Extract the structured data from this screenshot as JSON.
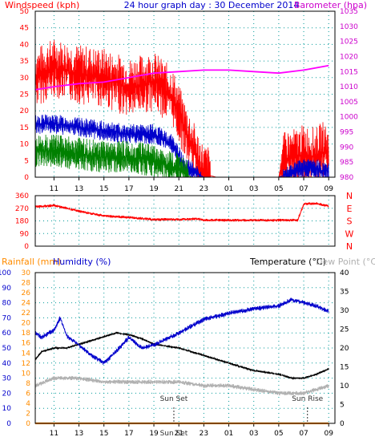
{
  "chart_data": [
    {
      "type": "line",
      "labels": {
        "left": "Windspeed (kph)",
        "center": "24 hour graph day : 30 December 2014",
        "right": "Barometer (hpa)"
      },
      "x_ticks": [
        "11",
        "13",
        "15",
        "17",
        "19",
        "21",
        "23",
        "01",
        "03",
        "05",
        "07",
        "09"
      ],
      "left_axis": {
        "ticks": [
          "0",
          "5",
          "10",
          "15",
          "20",
          "25",
          "30",
          "35",
          "40",
          "45",
          "50"
        ],
        "ylim": [
          0,
          50
        ]
      },
      "right_axis": {
        "ticks": [
          "980",
          "985",
          "990",
          "995",
          "1000",
          "1005",
          "1010",
          "1015",
          "1020",
          "1025",
          "1030",
          "1035"
        ],
        "ylim": [
          980,
          1035
        ]
      },
      "colors": {
        "gust": "#ff0000",
        "speed": "#0000cc",
        "average": "#008000",
        "barometer": "#ff00ff"
      },
      "series": [
        {
          "id": "barometer",
          "x": [
            9.5,
            11,
            13,
            15,
            17,
            19,
            21,
            23,
            25,
            27,
            29,
            31,
            33
          ],
          "y": [
            1009,
            1010,
            1011,
            1011.5,
            1013,
            1014.5,
            1015,
            1015.5,
            1015.5,
            1015,
            1014.5,
            1015.5,
            1017
          ]
        },
        {
          "id": "gust",
          "x": [
            9.5,
            11,
            13,
            15,
            17,
            19,
            20.5,
            21.5,
            22.5,
            23,
            24,
            27,
            29,
            29.5,
            30.5,
            31,
            32,
            32.5,
            33
          ],
          "y": [
            30,
            33,
            31,
            30,
            27,
            29,
            24,
            14,
            5,
            1,
            0,
            0,
            0,
            5,
            6,
            7,
            6,
            8,
            6
          ]
        },
        {
          "id": "speed",
          "x": [
            9.5,
            11,
            13,
            15,
            17,
            19,
            20.5,
            21.5,
            22.5,
            23,
            24,
            29,
            30.5,
            31.5,
            32.5,
            33
          ],
          "y": [
            16,
            16,
            15,
            14,
            13,
            13,
            10,
            3,
            1,
            0,
            0,
            0,
            2,
            3,
            2,
            2
          ]
        },
        {
          "id": "average",
          "x": [
            9.5,
            11,
            13,
            15,
            17,
            19,
            20.5,
            21.5,
            22,
            23
          ],
          "y": [
            8,
            8,
            7,
            6,
            6,
            5,
            3,
            1,
            0,
            0
          ]
        }
      ]
    },
    {
      "type": "line",
      "labels": {
        "compass": [
          "N",
          "W",
          "S",
          "E",
          "N"
        ]
      },
      "left_axis": {
        "ticks": [
          "0",
          "90",
          "180",
          "270",
          "360"
        ],
        "ylim": [
          0,
          360
        ]
      },
      "colors": {
        "direction": "#ff0000"
      },
      "series": [
        {
          "id": "direction",
          "x": [
            9.5,
            11,
            13,
            15,
            17,
            19,
            21,
            22.5,
            23,
            25,
            27,
            29,
            30.5,
            31,
            32,
            33
          ],
          "y": [
            280,
            290,
            250,
            215,
            205,
            190,
            190,
            195,
            185,
            185,
            185,
            185,
            185,
            300,
            305,
            285
          ]
        }
      ]
    },
    {
      "type": "line",
      "labels": {
        "rainfall": "Rainfall (mm)",
        "humidity": "Humidity (%)",
        "temperature": "Temperature (°C)",
        "dewpoint": "Dew Point (°C)",
        "sunset": "Sun Set",
        "sunrise": "Sun Rise",
        "sun_axis_label": "Sun Set"
      },
      "x_ticks": [
        "11",
        "13",
        "15",
        "17",
        "19",
        "21",
        "23",
        "01",
        "03",
        "05",
        "07",
        "09"
      ],
      "rain_axis": {
        "ticks": [
          "0",
          "2",
          "4",
          "6",
          "8",
          "10",
          "12",
          "14",
          "16",
          "18",
          "20",
          "22",
          "24",
          "26",
          "28",
          "30"
        ],
        "ylim": [
          0,
          30
        ]
      },
      "humidity_axis": {
        "ticks": [
          "0",
          "10",
          "20",
          "30",
          "40",
          "50",
          "60",
          "70",
          "80",
          "90",
          "100"
        ],
        "ylim": [
          0,
          100
        ]
      },
      "temp_axis": {
        "ticks": [
          "0",
          "5",
          "10",
          "15",
          "20",
          "25",
          "30",
          "35",
          "40"
        ],
        "ylim": [
          0,
          40
        ]
      },
      "colors": {
        "humidity": "#0000cc",
        "temperature": "#000000",
        "dewpoint": "#b0b0b0",
        "rainfall": "#ff8c00"
      },
      "sunset_x": 20.6,
      "sunrise_x": 31.3,
      "series": [
        {
          "id": "humidity",
          "x": [
            9.5,
            10,
            11,
            11.5,
            12,
            13,
            14,
            15,
            16,
            17,
            18,
            19,
            21,
            23,
            25,
            27,
            29,
            30,
            31,
            32,
            33
          ],
          "y": [
            60,
            57,
            62,
            70,
            58,
            52,
            45,
            40,
            48,
            57,
            50,
            52,
            60,
            69,
            73,
            76,
            78,
            82,
            80,
            78,
            74
          ]
        },
        {
          "id": "temperature",
          "x": [
            9.5,
            10,
            11,
            12,
            13,
            14,
            15,
            16,
            17,
            18,
            19,
            21,
            23,
            25,
            27,
            29,
            30,
            31,
            32,
            33
          ],
          "y": [
            17,
            19,
            20,
            20,
            21,
            22,
            23,
            24,
            23.5,
            22.5,
            21,
            20,
            18,
            16,
            14,
            13,
            12,
            12,
            13,
            14.5
          ]
        },
        {
          "id": "dewpoint",
          "x": [
            9.5,
            11,
            13,
            15,
            17,
            19,
            21,
            23,
            25,
            27,
            29,
            31,
            32,
            33
          ],
          "y": [
            10,
            12,
            12,
            11,
            11,
            11,
            11,
            10,
            10,
            9,
            8,
            8,
            9,
            10
          ]
        },
        {
          "id": "rainfall",
          "x": [
            9.5,
            33
          ],
          "y": [
            0,
            0
          ]
        }
      ]
    }
  ]
}
